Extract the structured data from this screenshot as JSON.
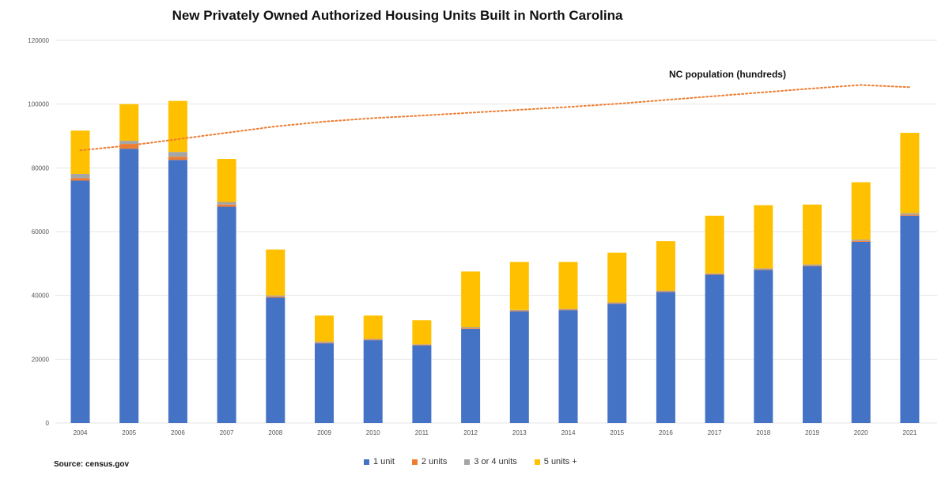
{
  "title": "New Privately Owned Authorized Housing Units Built in North Carolina",
  "source": "Source: census.gov",
  "colors": {
    "1 unit": "#4472C4",
    "2 units": "#ED7D31",
    "3 or 4 units": "#A5A5A5",
    "5 units +": "#FFC000",
    "population": "#ED7D31",
    "grid": "#e6e6e6"
  },
  "chart_data": {
    "type": "bar",
    "stacked": true,
    "title": "New Privately Owned Authorized Housing Units Built in North Carolina",
    "categories": [
      "2004",
      "2005",
      "2006",
      "2007",
      "2008",
      "2009",
      "2010",
      "2011",
      "2012",
      "2013",
      "2014",
      "2015",
      "2016",
      "2017",
      "2018",
      "2019",
      "2020",
      "2021"
    ],
    "ylim": [
      0,
      120000
    ],
    "yticks": [
      0,
      20000,
      40000,
      60000,
      80000,
      100000,
      120000
    ],
    "grid": true,
    "legend_position": "bottom",
    "series": [
      {
        "name": "1 unit",
        "values": [
          76000,
          86000,
          82500,
          67800,
          39300,
          25000,
          26000,
          24300,
          29500,
          35000,
          35400,
          37400,
          41100,
          46500,
          48000,
          49200,
          56800,
          65000
        ]
      },
      {
        "name": "2 units",
        "values": [
          800,
          1500,
          1000,
          700,
          300,
          200,
          200,
          200,
          200,
          200,
          200,
          200,
          200,
          200,
          200,
          200,
          300,
          300
        ]
      },
      {
        "name": "3 or 4 units",
        "values": [
          1300,
          1000,
          1500,
          800,
          400,
          300,
          200,
          200,
          300,
          300,
          200,
          200,
          200,
          200,
          300,
          300,
          400,
          500
        ]
      },
      {
        "name": "5 units +",
        "values": [
          13600,
          11500,
          16000,
          13500,
          14400,
          8200,
          7300,
          7500,
          17500,
          15000,
          14700,
          15600,
          15500,
          18100,
          19800,
          18800,
          18000,
          25200
        ]
      }
    ],
    "overlay_line": {
      "label": "NC population (hundreds)",
      "style": "dotted",
      "values": [
        85500,
        87000,
        89000,
        91000,
        93000,
        94500,
        95600,
        96400,
        97300,
        98200,
        99100,
        100100,
        101300,
        102500,
        103700,
        104900,
        106000,
        105300
      ]
    }
  }
}
